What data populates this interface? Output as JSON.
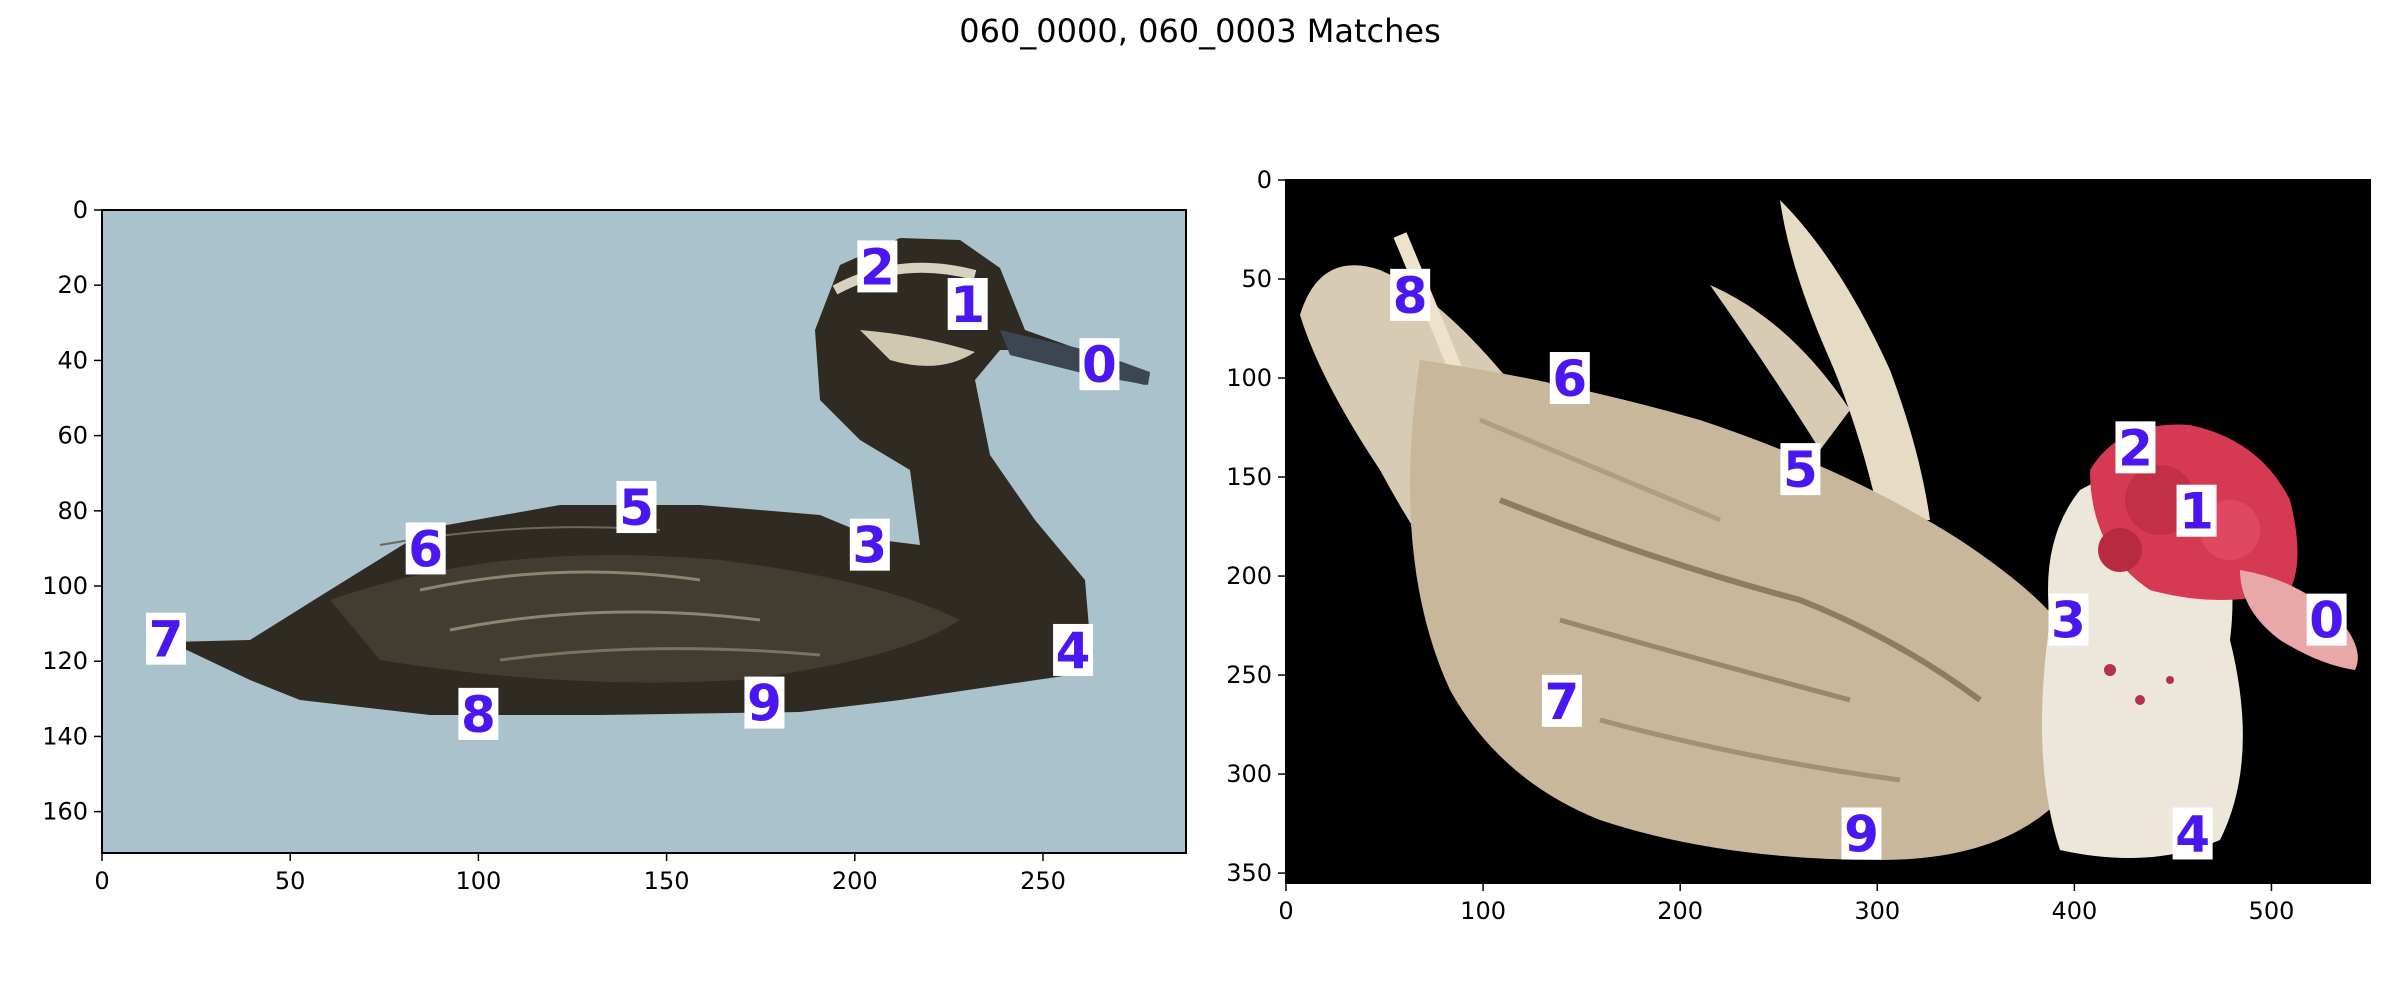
{
  "title": "060_0000, 060_0003 Matches",
  "chart_data": [
    {
      "type": "scatter",
      "panel": "left",
      "image_description": "dark brown duck swimming, facing right, on a light blue-grey background",
      "background_color": "#a9c2cb",
      "xlim": [
        0,
        288
      ],
      "ylim": [
        171,
        0
      ],
      "x_ticks": [
        0,
        50,
        100,
        150,
        200,
        250
      ],
      "y_ticks": [
        0,
        20,
        40,
        60,
        80,
        100,
        120,
        140,
        160
      ],
      "points": [
        {
          "label": "0",
          "x": 265,
          "y": 41
        },
        {
          "label": "1",
          "x": 230,
          "y": 25
        },
        {
          "label": "2",
          "x": 206,
          "y": 15
        },
        {
          "label": "3",
          "x": 204,
          "y": 89
        },
        {
          "label": "4",
          "x": 258,
          "y": 117
        },
        {
          "label": "5",
          "x": 142,
          "y": 79
        },
        {
          "label": "6",
          "x": 86,
          "y": 90
        },
        {
          "label": "7",
          "x": 17,
          "y": 114
        },
        {
          "label": "8",
          "x": 100,
          "y": 134
        },
        {
          "label": "9",
          "x": 176,
          "y": 131
        }
      ]
    },
    {
      "type": "scatter",
      "panel": "right",
      "image_description": "white and tan muscovy duck with red facial caruncles, facing right, on a black background",
      "background_color": "#000000",
      "xlim": [
        0,
        550
      ],
      "ylim": [
        355,
        0
      ],
      "x_ticks": [
        0,
        100,
        200,
        300,
        400,
        500
      ],
      "y_ticks": [
        0,
        50,
        100,
        150,
        200,
        250,
        300,
        350
      ],
      "points": [
        {
          "label": "0",
          "x": 528,
          "y": 222
        },
        {
          "label": "1",
          "x": 462,
          "y": 167
        },
        {
          "label": "2",
          "x": 431,
          "y": 135
        },
        {
          "label": "3",
          "x": 397,
          "y": 222
        },
        {
          "label": "4",
          "x": 460,
          "y": 330
        },
        {
          "label": "5",
          "x": 261,
          "y": 146
        },
        {
          "label": "6",
          "x": 144,
          "y": 100
        },
        {
          "label": "7",
          "x": 140,
          "y": 263
        },
        {
          "label": "8",
          "x": 63,
          "y": 58
        },
        {
          "label": "9",
          "x": 292,
          "y": 330
        }
      ]
    }
  ],
  "colors": {
    "marker_text": "#4b17f0",
    "marker_box": "#ffffff"
  }
}
